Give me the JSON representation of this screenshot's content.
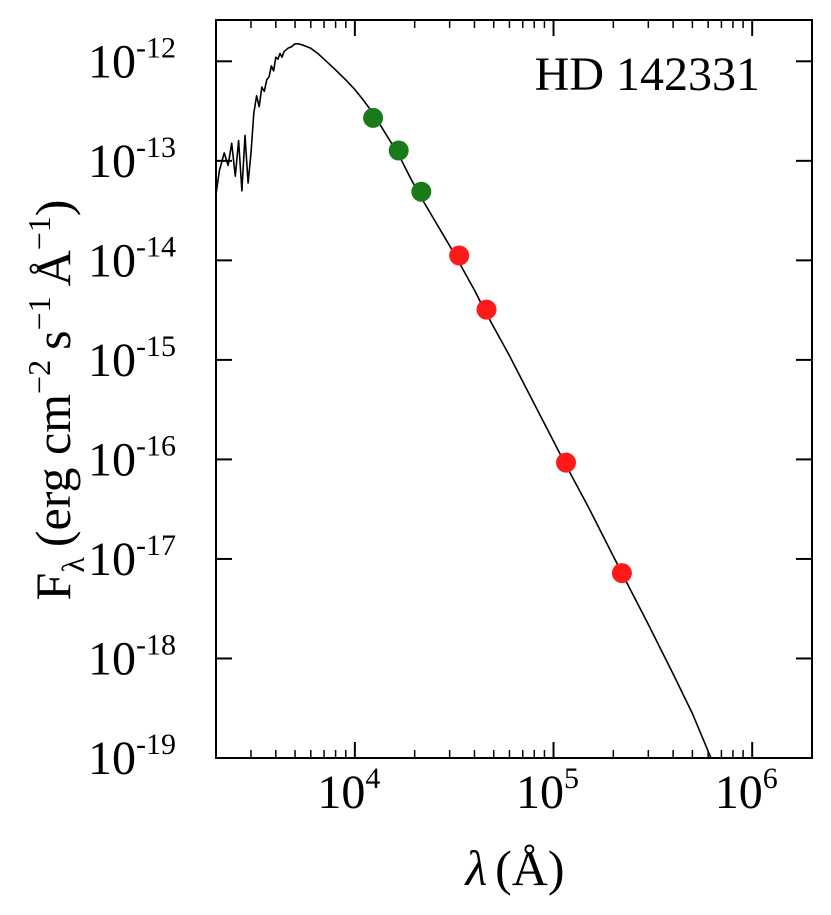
{
  "chart_data": {
    "type": "scatter",
    "title": "HD 142331",
    "xlabel": {
      "symbol": "λ",
      "unit": "(Å)"
    },
    "ylabel": {
      "F": "F",
      "sub": "λ",
      "open": "(erg cm",
      "exp1": "−2",
      "s": "s",
      "exp2": "−1",
      "A": "Å",
      "exp3": "−1",
      "close": ")"
    },
    "x_scale": "log",
    "y_scale": "log",
    "xlim": [
      2000,
      2000000
    ],
    "ylim": [
      1e-19,
      2.6e-12
    ],
    "x_ticks": [
      {
        "value": 10000,
        "base": "10",
        "exp": "4"
      },
      {
        "value": 100000,
        "base": "10",
        "exp": "5"
      },
      {
        "value": 1000000,
        "base": "10",
        "exp": "6"
      }
    ],
    "y_ticks": [
      {
        "value": 1e-12,
        "base": "10",
        "exp": "-12"
      },
      {
        "value": 1e-13,
        "base": "10",
        "exp": "-13"
      },
      {
        "value": 1e-14,
        "base": "10",
        "exp": "-14"
      },
      {
        "value": 1e-15,
        "base": "10",
        "exp": "-15"
      },
      {
        "value": 1e-16,
        "base": "10",
        "exp": "-16"
      },
      {
        "value": 1e-17,
        "base": "10",
        "exp": "-17"
      },
      {
        "value": 1e-18,
        "base": "10",
        "exp": "-18"
      },
      {
        "value": 1e-19,
        "base": "10",
        "exp": "-19"
      }
    ],
    "series": [
      {
        "kind": "line",
        "color": "#000000",
        "points": [
          [
            2000,
            4.6e-14
          ],
          [
            2080,
            8e-14
          ],
          [
            2200,
            1.2e-13
          ],
          [
            2300,
            9e-14
          ],
          [
            2400,
            1.5e-13
          ],
          [
            2500,
            7e-14
          ],
          [
            2600,
            1.6e-13
          ],
          [
            2700,
            5e-14
          ],
          [
            2800,
            1.8e-13
          ],
          [
            2900,
            6e-14
          ],
          [
            3000,
            1.2e-13
          ],
          [
            3100,
            3e-13
          ],
          [
            3200,
            4.5e-13
          ],
          [
            3300,
            3.5e-13
          ],
          [
            3400,
            5.5e-13
          ],
          [
            3500,
            5e-13
          ],
          [
            3600,
            6.5e-13
          ],
          [
            3700,
            7e-13
          ],
          [
            3800,
            9e-13
          ],
          [
            3900,
            8e-13
          ],
          [
            4000,
            1.1e-12
          ],
          [
            4100,
            1.05e-12
          ],
          [
            4200,
            1.2e-12
          ],
          [
            4300,
            1.1e-12
          ],
          [
            4400,
            1.25e-12
          ],
          [
            4600,
            1.35e-12
          ],
          [
            4800,
            1.4e-12
          ],
          [
            5000,
            1.5e-12
          ],
          [
            5200,
            1.5e-12
          ],
          [
            5500,
            1.45e-12
          ],
          [
            6000,
            1.35e-12
          ],
          [
            6500,
            1.2e-12
          ],
          [
            7000,
            1.05e-12
          ],
          [
            8000,
            8.2e-13
          ],
          [
            9000,
            6.5e-13
          ],
          [
            10000,
            5.2e-13
          ],
          [
            11000,
            4.1e-13
          ],
          [
            12350,
            3e-13
          ],
          [
            14000,
            2e-13
          ],
          [
            16620,
            1.15e-13
          ],
          [
            19000,
            6.8e-14
          ],
          [
            21590,
            4.25e-14
          ],
          [
            25000,
            2.6e-14
          ],
          [
            30000,
            1.4e-14
          ],
          [
            33500,
            9.5e-15
          ],
          [
            40000,
            5e-15
          ],
          [
            46000,
            2.9e-15
          ],
          [
            60000,
            1.1e-15
          ],
          [
            80000,
            3.6e-16
          ],
          [
            115600,
            8.7e-17
          ],
          [
            150000,
            3.3e-17
          ],
          [
            220800,
            7.2e-18
          ],
          [
            300000,
            2.2e-18
          ],
          [
            400000,
            7e-19
          ],
          [
            500000,
            2.8e-19
          ],
          [
            620000,
            1e-19
          ]
        ]
      },
      {
        "kind": "points",
        "color": "#1a7a1a",
        "points": [
          [
            12350,
            2.7e-13
          ],
          [
            16620,
            1.27e-13
          ],
          [
            21590,
            4.9e-14
          ]
        ]
      },
      {
        "kind": "points",
        "color": "#ff1a1a",
        "points": [
          [
            33500,
            1.12e-14
          ],
          [
            46000,
            3.2e-15
          ],
          [
            115600,
            9.3e-17
          ],
          [
            220800,
            7.2e-18
          ]
        ]
      }
    ],
    "grid": false,
    "legend": "none"
  }
}
